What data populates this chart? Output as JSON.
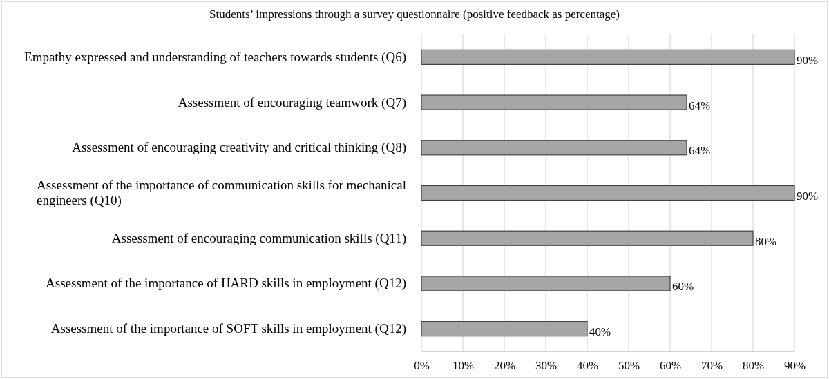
{
  "chart_data": {
    "type": "bar",
    "orientation": "horizontal",
    "title": "Students’ impressions through a survey questionnaire (positive feedback as percentage)",
    "categories": [
      "Empathy expressed and understanding of teachers towards students (Q6)",
      "Assessment of encouraging teamwork (Q7)",
      "Assessment of encouraging creativity and critical thinking (Q8)",
      "Assessment of the importance of communication skills for mechanical engineers (Q10)",
      "Assessment of encouraging communication skills (Q11)",
      "Assessment of the importance of HARD skills in employment (Q12)",
      "Assessment of the importance of SOFT skills in employment (Q12)"
    ],
    "values": [
      90,
      64,
      64,
      90,
      80,
      60,
      40
    ],
    "value_labels": [
      "90%",
      "64%",
      "64%",
      "90%",
      "80%",
      "60%",
      "40%"
    ],
    "color": "#a6a6a6",
    "xlim": [
      0,
      90
    ],
    "xticks": [
      {
        "value": 0,
        "label": "0%"
      },
      {
        "value": 10,
        "label": "10%"
      },
      {
        "value": 20,
        "label": "20%"
      },
      {
        "value": 30,
        "label": "30%"
      },
      {
        "value": 40,
        "label": "40%"
      },
      {
        "value": 50,
        "label": "50%"
      },
      {
        "value": 60,
        "label": "60%"
      },
      {
        "value": 70,
        "label": "70%"
      },
      {
        "value": 80,
        "label": "80%"
      },
      {
        "value": 90,
        "label": "90%"
      }
    ],
    "grid": "x"
  }
}
